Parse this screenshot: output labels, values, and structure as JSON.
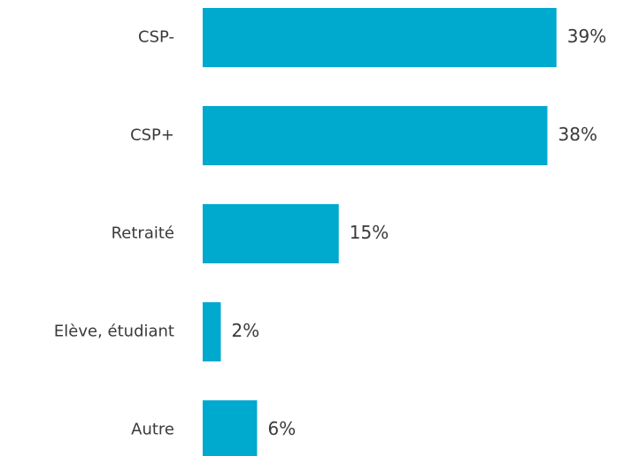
{
  "chart_data": {
    "type": "hbar",
    "categories": [
      "CSP-",
      "CSP+",
      "Retraité",
      "Elève, étudiant",
      "Autre"
    ],
    "values": [
      39,
      38,
      15,
      2,
      6
    ],
    "value_labels": [
      "39%",
      "38%",
      "15%",
      "2%",
      "6%"
    ],
    "color": "#00a9ce",
    "xlim": [
      0,
      40
    ]
  }
}
